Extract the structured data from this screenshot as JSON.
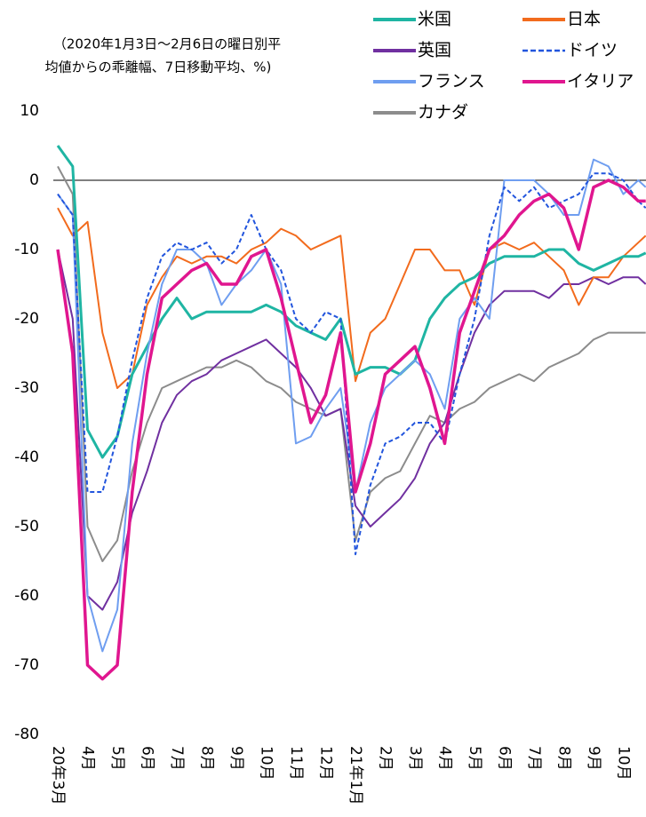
{
  "chart_data": {
    "type": "line",
    "annotation": [
      "（2020年1月3日～2月6日の曜日別平",
      "均値からの乖離幅、7日移動平均、%)"
    ],
    "x": [
      0,
      0.5,
      1,
      1.5,
      2,
      2.5,
      3,
      3.5,
      4,
      4.5,
      5,
      5.5,
      6,
      6.5,
      7,
      7.5,
      8,
      8.5,
      9,
      9.5,
      10,
      10.5,
      11,
      11.5,
      12,
      12.5,
      13,
      13.5,
      14,
      14.5,
      15,
      15.5,
      16,
      16.5,
      17,
      17.5,
      18,
      18.5,
      19,
      19.5,
      19.75
    ],
    "xlim": [
      -0.15,
      19.76
    ],
    "xticks": [
      {
        "value": 0,
        "label": "20年3月"
      },
      {
        "value": 1,
        "label": "4月"
      },
      {
        "value": 2,
        "label": "5月"
      },
      {
        "value": 3,
        "label": "6月"
      },
      {
        "value": 4,
        "label": "7月"
      },
      {
        "value": 5,
        "label": "8月"
      },
      {
        "value": 6,
        "label": "9月"
      },
      {
        "value": 7,
        "label": "10月"
      },
      {
        "value": 8,
        "label": "11月"
      },
      {
        "value": 9,
        "label": "12月"
      },
      {
        "value": 10,
        "label": "21年1月"
      },
      {
        "value": 11,
        "label": "2月"
      },
      {
        "value": 12,
        "label": "3月"
      },
      {
        "value": 13,
        "label": "4月"
      },
      {
        "value": 14,
        "label": "5月"
      },
      {
        "value": 15,
        "label": "6月"
      },
      {
        "value": 16,
        "label": "7月"
      },
      {
        "value": 17,
        "label": "8月"
      },
      {
        "value": 18,
        "label": "9月"
      },
      {
        "value": 19,
        "label": "10月"
      }
    ],
    "ylim": [
      -80,
      10
    ],
    "yticks": [
      10,
      0,
      -10,
      -20,
      -30,
      -40,
      -50,
      -60,
      -70,
      -80
    ],
    "zero_line": true,
    "legend": "top-right",
    "series": [
      {
        "name": "米国",
        "color": "#1fb5a3",
        "line_width": 3,
        "values": [
          5,
          2,
          -36,
          -40,
          -37,
          -28,
          -24,
          -20,
          -17,
          -20,
          -19,
          -19,
          -19,
          -19,
          -18,
          -19,
          -21,
          -22,
          -23,
          -20,
          -28,
          -27,
          -27,
          -28,
          -26,
          -20,
          -17,
          -15,
          -14,
          -12,
          -11,
          -11,
          -11,
          -10,
          -10,
          -12,
          -13,
          -12,
          -11,
          -11,
          -10.5
        ]
      },
      {
        "name": "日本",
        "color": "#f26b1d",
        "line_width": 2,
        "values": [
          -4,
          -8,
          -6,
          -22,
          -30,
          -28,
          -18,
          -14,
          -11,
          -12,
          -11,
          -11,
          -12,
          -10,
          -9,
          -7,
          -8,
          -10,
          -9,
          -8,
          -29,
          -22,
          -20,
          -15,
          -10,
          -10,
          -13,
          -13,
          -18,
          -10,
          -9,
          -10,
          -9,
          -11,
          -13,
          -18,
          -14,
          -14,
          -11,
          -9,
          -8
        ]
      },
      {
        "name": "英国",
        "color": "#7030a0",
        "line_width": 2,
        "values": [
          -10,
          -20,
          -60,
          -62,
          -58,
          -48,
          -42,
          -35,
          -31,
          -29,
          -28,
          -26,
          -25,
          -24,
          -23,
          -25,
          -27,
          -30,
          -34,
          -33,
          -47,
          -50,
          -48,
          -46,
          -43,
          -38,
          -35,
          -28,
          -22,
          -18,
          -16,
          -16,
          -16,
          -17,
          -15,
          -15,
          -14,
          -15,
          -14,
          -14,
          -15
        ]
      },
      {
        "name": "ドイツ",
        "color": "#2255dd",
        "line_width": 2,
        "dashed": true,
        "values": [
          -2,
          -5,
          -45,
          -45,
          -37,
          -26,
          -17,
          -11,
          -9,
          -10,
          -9,
          -12,
          -10,
          -5,
          -10,
          -13,
          -20,
          -22,
          -19,
          -20,
          -54,
          -44,
          -38,
          -37,
          -35,
          -35,
          -38,
          -28,
          -20,
          -8,
          -1,
          -3,
          -1,
          -4,
          -3,
          -2,
          1,
          1,
          0,
          -3,
          -4
        ]
      },
      {
        "name": "フランス",
        "color": "#6f9ef0",
        "line_width": 2,
        "values": [
          -2,
          -5,
          -60,
          -68,
          -62,
          -38,
          -25,
          -15,
          -10,
          -10,
          -12,
          -18,
          -15,
          -13,
          -10,
          -15,
          -38,
          -37,
          -33,
          -30,
          -45,
          -35,
          -30,
          -28,
          -26,
          -28,
          -33,
          -20,
          -17,
          -20,
          0,
          0,
          0,
          -2,
          -5,
          -5,
          3,
          2,
          -2,
          0,
          -1
        ]
      },
      {
        "name": "イタリア",
        "color": "#e0168f",
        "line_width": 3.5,
        "values": [
          -10,
          -25,
          -70,
          -72,
          -70,
          -45,
          -28,
          -17,
          -15,
          -13,
          -12,
          -15,
          -15,
          -11,
          -10,
          -17,
          -26,
          -35,
          -31,
          -22,
          -45,
          -38,
          -28,
          -26,
          -24,
          -30,
          -38,
          -22,
          -16,
          -10,
          -8,
          -5,
          -3,
          -2,
          -4,
          -10,
          -1,
          0,
          -1,
          -3,
          -3
        ]
      },
      {
        "name": "カナダ",
        "color": "#8c8c8c",
        "line_width": 2,
        "values": [
          2,
          -2,
          -50,
          -55,
          -52,
          -42,
          -35,
          -30,
          -29,
          -28,
          -27,
          -27,
          -26,
          -27,
          -29,
          -30,
          -32,
          -33,
          -34,
          -33,
          -52,
          -45,
          -43,
          -42,
          -38,
          -34,
          -35,
          -33,
          -32,
          -30,
          -29,
          -28,
          -29,
          -27,
          -26,
          -25,
          -23,
          -22,
          -22,
          -22,
          -22
        ]
      }
    ]
  }
}
